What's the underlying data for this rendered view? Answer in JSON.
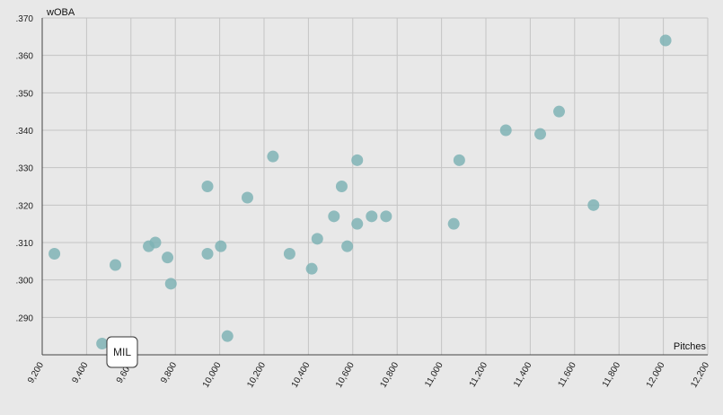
{
  "chart_data": {
    "type": "scatter",
    "xlabel": "Pitches",
    "ylabel": "wOBA",
    "xlim": [
      9200,
      12200
    ],
    "ylim": [
      0.28,
      0.37
    ],
    "x_ticks": [
      "9,200",
      "9,400",
      "9,600",
      "9,800",
      "10,000",
      "10,200",
      "10,400",
      "10,600",
      "10,800",
      "11,000",
      "11,200",
      "11,400",
      "11,600",
      "11,800",
      "12,000",
      "12,200"
    ],
    "y_ticks": [
      ".290",
      ".300",
      ".310",
      ".320",
      ".330",
      ".340",
      ".350",
      ".360",
      ".370"
    ],
    "grid": true,
    "tooltip": {
      "label": "MIL",
      "x": 9470,
      "y": 0.283
    },
    "points": [
      {
        "x": 9255,
        "y": 0.307
      },
      {
        "x": 9470,
        "y": 0.283
      },
      {
        "x": 9530,
        "y": 0.304
      },
      {
        "x": 9680,
        "y": 0.309
      },
      {
        "x": 9710,
        "y": 0.31
      },
      {
        "x": 9765,
        "y": 0.306
      },
      {
        "x": 9780,
        "y": 0.299
      },
      {
        "x": 9945,
        "y": 0.325
      },
      {
        "x": 9945,
        "y": 0.307
      },
      {
        "x": 10005,
        "y": 0.309
      },
      {
        "x": 10035,
        "y": 0.285
      },
      {
        "x": 10125,
        "y": 0.322
      },
      {
        "x": 10240,
        "y": 0.333
      },
      {
        "x": 10315,
        "y": 0.307
      },
      {
        "x": 10415,
        "y": 0.303
      },
      {
        "x": 10440,
        "y": 0.311
      },
      {
        "x": 10515,
        "y": 0.317
      },
      {
        "x": 10550,
        "y": 0.325
      },
      {
        "x": 10575,
        "y": 0.309
      },
      {
        "x": 10620,
        "y": 0.332
      },
      {
        "x": 10620,
        "y": 0.315
      },
      {
        "x": 10685,
        "y": 0.317
      },
      {
        "x": 10750,
        "y": 0.317
      },
      {
        "x": 11055,
        "y": 0.315
      },
      {
        "x": 11080,
        "y": 0.332
      },
      {
        "x": 11290,
        "y": 0.34
      },
      {
        "x": 11445,
        "y": 0.339
      },
      {
        "x": 11530,
        "y": 0.345
      },
      {
        "x": 11685,
        "y": 0.32
      },
      {
        "x": 12010,
        "y": 0.364
      }
    ]
  }
}
